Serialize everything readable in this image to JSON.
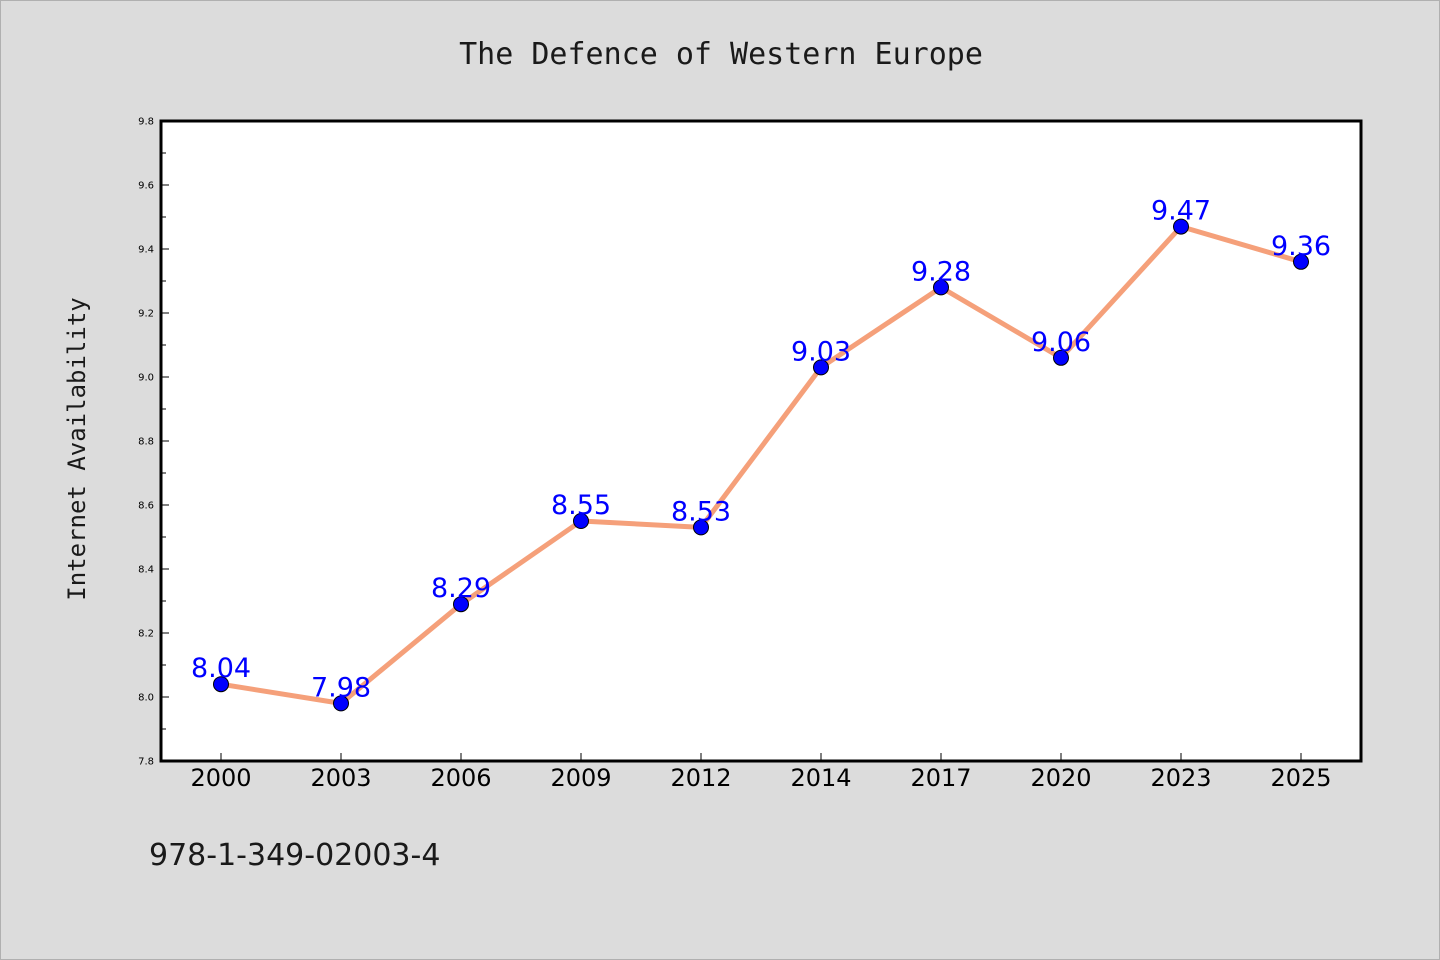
{
  "chart_data": {
    "type": "line",
    "title": "The Defence of Western Europe",
    "xlabel": "",
    "ylabel": "Internet Availability",
    "categories": [
      "2000",
      "2003",
      "2006",
      "2009",
      "2012",
      "2014",
      "2017",
      "2020",
      "2023",
      "2025"
    ],
    "values": [
      8.04,
      7.98,
      8.29,
      8.55,
      8.53,
      9.03,
      9.28,
      9.06,
      9.47,
      9.36
    ],
    "data_labels": [
      "8.04",
      "7.98",
      "8.29",
      "8.55",
      "8.53",
      "9.03",
      "9.28",
      "9.06",
      "9.47",
      "9.36"
    ],
    "ylim": [
      7.8,
      9.8
    ],
    "yticks": [
      "7.8",
      "8.0",
      "8.2",
      "8.4",
      "8.6",
      "8.8",
      "9.0",
      "9.2",
      "9.4",
      "9.6",
      "9.8"
    ],
    "grid": false,
    "legend": "none",
    "colors": {
      "line": "#f5a07a",
      "marker": "#0000ff",
      "label": "#0000ff",
      "plot_background": "#ffffff",
      "figure_background": "#dcdcdc"
    }
  },
  "footnote": "978-1-349-02003-4"
}
